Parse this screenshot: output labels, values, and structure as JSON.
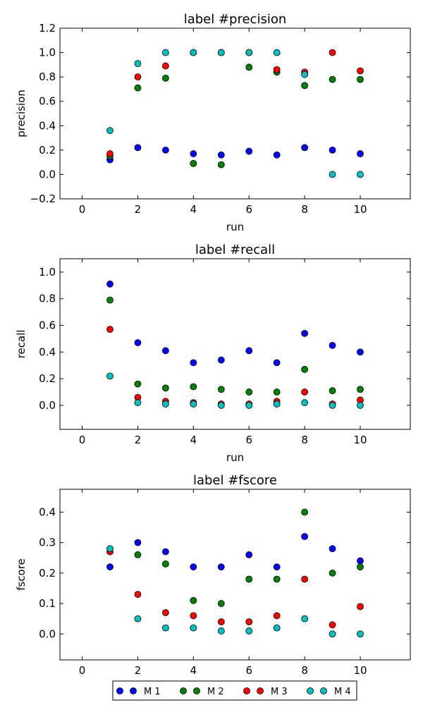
{
  "legend": {
    "placement": "bottom-center",
    "entries": [
      {
        "label": "M 1",
        "color": "#0000ff"
      },
      {
        "label": "M 2",
        "color": "#008000"
      },
      {
        "label": "M 3",
        "color": "#ff0000"
      },
      {
        "label": "M 4",
        "color": "#00bfbf"
      }
    ]
  },
  "chart_data": [
    {
      "type": "scatter",
      "title": "label #precision",
      "xlabel": "run",
      "ylabel": "precision",
      "xlim": [
        -0.8,
        11.8
      ],
      "ylim": [
        -0.2,
        1.2
      ],
      "xticks": [
        0,
        2,
        4,
        6,
        8,
        10
      ],
      "yticks": [
        -0.2,
        0.0,
        0.2,
        0.4,
        0.6,
        0.8,
        1.0,
        1.2
      ],
      "grid": false,
      "x": [
        1,
        2,
        3,
        4,
        5,
        6,
        7,
        8,
        9,
        10
      ],
      "series": [
        {
          "name": "M 1",
          "color": "#0000ff",
          "values": [
            0.12,
            0.22,
            0.2,
            0.17,
            0.16,
            0.19,
            0.16,
            0.22,
            0.2,
            0.17
          ]
        },
        {
          "name": "M 2",
          "color": "#008000",
          "values": [
            0.15,
            0.71,
            0.79,
            0.09,
            0.08,
            0.88,
            0.84,
            0.73,
            0.78,
            0.78
          ]
        },
        {
          "name": "M 3",
          "color": "#ff0000",
          "values": [
            0.17,
            0.8,
            0.89,
            1.0,
            1.0,
            1.0,
            0.86,
            0.84,
            1.0,
            0.85
          ]
        },
        {
          "name": "M 4",
          "color": "#00bfbf",
          "values": [
            0.36,
            0.91,
            1.0,
            1.0,
            1.0,
            1.0,
            1.0,
            0.82,
            0.0,
            0.0
          ]
        }
      ]
    },
    {
      "type": "scatter",
      "title": "label #recall",
      "xlabel": "run",
      "ylabel": "recall",
      "xlim": [
        -0.8,
        11.8
      ],
      "ylim": [
        -0.18,
        1.1
      ],
      "xticks": [
        0,
        2,
        4,
        6,
        8,
        10
      ],
      "yticks": [
        0.0,
        0.2,
        0.4,
        0.6,
        0.8,
        1.0
      ],
      "grid": false,
      "x": [
        1,
        2,
        3,
        4,
        5,
        6,
        7,
        8,
        9,
        10
      ],
      "series": [
        {
          "name": "M 1",
          "color": "#0000ff",
          "values": [
            0.91,
            0.47,
            0.41,
            0.32,
            0.34,
            0.41,
            0.32,
            0.54,
            0.45,
            0.4
          ]
        },
        {
          "name": "M 2",
          "color": "#008000",
          "values": [
            0.79,
            0.16,
            0.13,
            0.14,
            0.12,
            0.1,
            0.1,
            0.27,
            0.11,
            0.12
          ]
        },
        {
          "name": "M 3",
          "color": "#ff0000",
          "values": [
            0.57,
            0.06,
            0.03,
            0.02,
            0.01,
            0.01,
            0.03,
            0.1,
            0.01,
            0.04
          ]
        },
        {
          "name": "M 4",
          "color": "#00bfbf",
          "values": [
            0.22,
            0.02,
            0.01,
            0.01,
            0.0,
            0.0,
            0.01,
            0.02,
            0.0,
            0.0
          ]
        }
      ]
    },
    {
      "type": "scatter",
      "title": "label #fscore",
      "xlabel": "",
      "ylabel": "fscore",
      "xlim": [
        -0.8,
        11.8
      ],
      "ylim": [
        -0.085,
        0.475
      ],
      "xticks": [
        0,
        2,
        4,
        6,
        8,
        10
      ],
      "yticks": [
        0.0,
        0.1,
        0.2,
        0.3,
        0.4
      ],
      "grid": false,
      "x": [
        1,
        2,
        3,
        4,
        5,
        6,
        7,
        8,
        9,
        10
      ],
      "series": [
        {
          "name": "M 1",
          "color": "#0000ff",
          "values": [
            0.22,
            0.3,
            0.27,
            0.22,
            0.22,
            0.26,
            0.22,
            0.32,
            0.28,
            0.24
          ]
        },
        {
          "name": "M 2",
          "color": "#008000",
          "values": [
            0.27,
            0.26,
            0.23,
            0.11,
            0.1,
            0.18,
            0.18,
            0.4,
            0.2,
            0.22
          ]
        },
        {
          "name": "M 3",
          "color": "#ff0000",
          "values": [
            0.27,
            0.13,
            0.07,
            0.06,
            0.04,
            0.04,
            0.06,
            0.18,
            0.03,
            0.09
          ]
        },
        {
          "name": "M 4",
          "color": "#00bfbf",
          "values": [
            0.28,
            0.05,
            0.02,
            0.02,
            0.01,
            0.01,
            0.02,
            0.05,
            0.0,
            0.0
          ]
        }
      ]
    }
  ]
}
